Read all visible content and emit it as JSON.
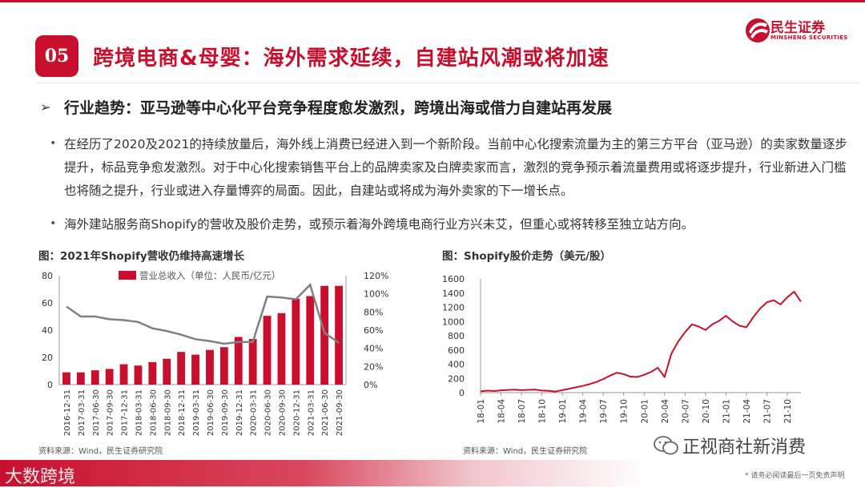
{
  "header": {
    "section_number": "05",
    "title": "跨境电商&母婴：海外需求延续，自建站风潮或将加速",
    "logo_cn": "民生证券",
    "logo_en": "MINSHENG SECURITIES"
  },
  "subtitle": {
    "arrow": "➢",
    "text": "行业趋势：亚马逊等中心化平台竞争程度愈发激烈，跨境出海或借力自建站再发展"
  },
  "paragraphs": [
    {
      "bullet": "•",
      "text": "在经历了2020及2021的持续放量后，海外线上消费已经进入到一个新阶段。当前中心化搜索流量为主的第三方平台（亚马逊）的卖家数量逐步提升，标品竞争愈发激烈。对于中心化搜索销售平台上的品牌卖家及白牌卖家而言，激烈的竞争预示着流量费用或将逐步提升，行业新进入门槛也将随之提升，行业或进入存量博弈的局面。因此，自建站或将成为海外卖家的下一增长点。"
    },
    {
      "bullet": "•",
      "text": "海外建站服务商Shopify的营收及股价走势，或预示着海外跨境电商行业方兴未艾，但重心或将转移至独立站方向。"
    }
  ],
  "figures": [
    {
      "title": "图：2021年Shopify营收仍维持高速增长",
      "source": "资料来源：Wind，民生证券研究院"
    },
    {
      "title": "图：Shopify股价走势（美元/股）",
      "source": "资料来源：Wind，民生证券研究院"
    }
  ],
  "footer": {
    "watermark_left": "大数跨境",
    "watermark_right": "正视商社新消费",
    "disclaimer": "* 请务必阅读最后一页免责声明"
  },
  "colors": {
    "brand_red": "#c8102e",
    "line_gray": "#808080"
  },
  "chart_data": [
    {
      "type": "bar",
      "categories": [
        "2016-12-31",
        "2017-03-31",
        "2017-06-30",
        "2017-09-30",
        "2017-12-31",
        "2018-03-31",
        "2018-06-30",
        "2018-09-30",
        "2018-12-31",
        "2019-03-31",
        "2019-06-30",
        "2019-09-30",
        "2019-12-31",
        "2020-03-31",
        "2020-06-30",
        "2020-09-30",
        "2020-12-31",
        "2021-03-31",
        "2021-06-30",
        "2021-09-30"
      ],
      "series": [
        {
          "name": "营业总收入（单位：人民币/亿元）",
          "axis": "left",
          "values": [
            9,
            9,
            10.5,
            11.5,
            15,
            14,
            16.5,
            19,
            24,
            22,
            25.5,
            27.5,
            35,
            33.5,
            50.5,
            52.5,
            63,
            65,
            72.5,
            72.5
          ]
        },
        {
          "name": "",
          "axis": "right",
          "style": "line",
          "values": [
            0.86,
            0.75,
            0.75,
            0.72,
            0.71,
            0.69,
            0.62,
            0.59,
            0.55,
            0.5,
            0.48,
            0.45,
            0.47,
            0.47,
            0.97,
            0.96,
            0.94,
            1.1,
            0.57,
            0.46
          ]
        }
      ],
      "ylim": [
        0,
        80
      ],
      "yticks": [
        0,
        20,
        40,
        60,
        80
      ],
      "y2lim": [
        0,
        1.2
      ],
      "y2ticks": [
        "0%",
        "20%",
        "40%",
        "60%",
        "80%",
        "100%",
        "120%"
      ],
      "legend": "top",
      "grid": false
    },
    {
      "type": "line",
      "x_ticks": [
        "18-01",
        "18-04",
        "18-07",
        "18-10",
        "19-01",
        "19-04",
        "19-07",
        "19-10",
        "20-01",
        "20-04",
        "20-07",
        "20-10",
        "21-01",
        "21-04",
        "21-07",
        "21-10"
      ],
      "x_range": [
        "2018-01",
        "2021-12"
      ],
      "series": [
        {
          "name": "",
          "points": [
            [
              "2018-01",
              18
            ],
            [
              "2018-02",
              28
            ],
            [
              "2018-03",
              22
            ],
            [
              "2018-04",
              32
            ],
            [
              "2018-05",
              38
            ],
            [
              "2018-06",
              42
            ],
            [
              "2018-07",
              35
            ],
            [
              "2018-08",
              40
            ],
            [
              "2018-09",
              42
            ],
            [
              "2018-10",
              30
            ],
            [
              "2018-11",
              25
            ],
            [
              "2018-12",
              16
            ],
            [
              "2019-01",
              35
            ],
            [
              "2019-02",
              55
            ],
            [
              "2019-03",
              75
            ],
            [
              "2019-04",
              95
            ],
            [
              "2019-05",
              120
            ],
            [
              "2019-06",
              150
            ],
            [
              "2019-07",
              190
            ],
            [
              "2019-08",
              240
            ],
            [
              "2019-09",
              280
            ],
            [
              "2019-10",
              260
            ],
            [
              "2019-11",
              225
            ],
            [
              "2019-12",
              220
            ],
            [
              "2020-01",
              250
            ],
            [
              "2020-02",
              290
            ],
            [
              "2020-03",
              350
            ],
            [
              "2020-04",
              220
            ],
            [
              "2020-05",
              550
            ],
            [
              "2020-06",
              720
            ],
            [
              "2020-07",
              850
            ],
            [
              "2020-08",
              960
            ],
            [
              "2020-09",
              930
            ],
            [
              "2020-10",
              880
            ],
            [
              "2020-11",
              960
            ],
            [
              "2020-12",
              1010
            ],
            [
              "2021-01",
              1080
            ],
            [
              "2021-02",
              1000
            ],
            [
              "2021-03",
              940
            ],
            [
              "2021-04",
              920
            ],
            [
              "2021-05",
              1060
            ],
            [
              "2021-06",
              1180
            ],
            [
              "2021-07",
              1270
            ],
            [
              "2021-08",
              1300
            ],
            [
              "2021-09",
              1240
            ],
            [
              "2021-10",
              1340
            ],
            [
              "2021-11",
              1420
            ],
            [
              "2021-12",
              1280
            ]
          ]
        }
      ],
      "ylim": [
        0,
        1600
      ],
      "yticks": [
        0,
        200,
        400,
        600,
        800,
        1000,
        1200,
        1400,
        1600
      ],
      "legend": "none",
      "grid": false
    }
  ]
}
